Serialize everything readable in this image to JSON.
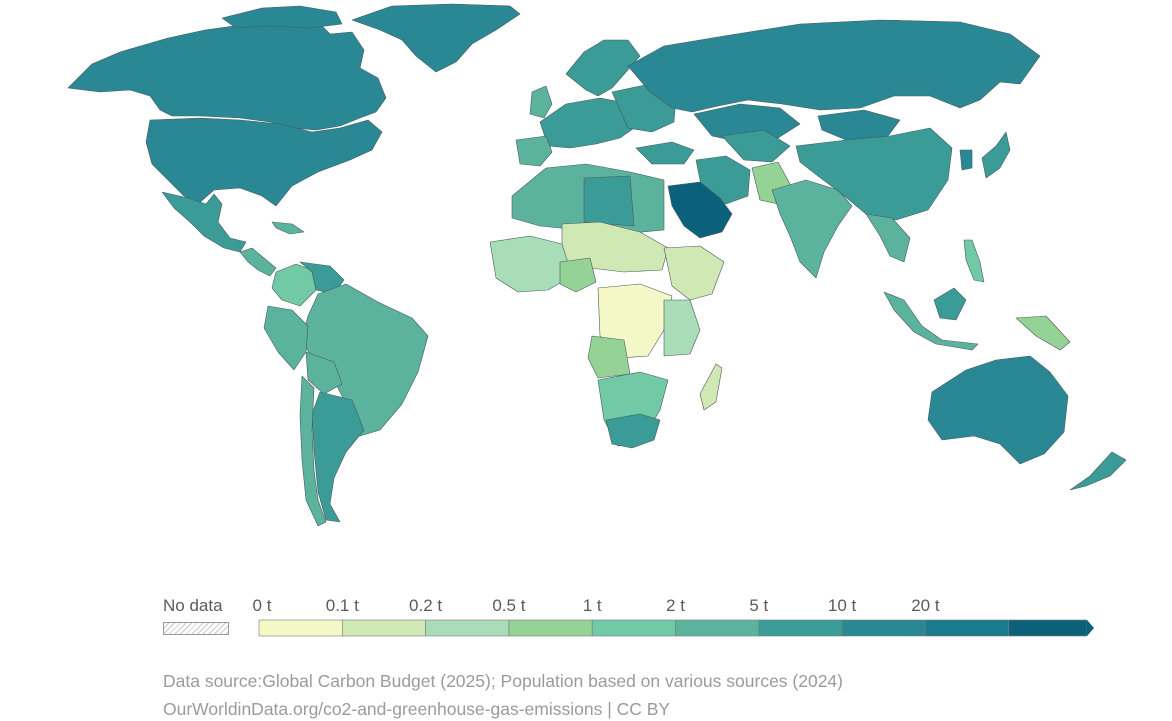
{
  "legend": {
    "no_data_label": "No data",
    "tick_labels": [
      "0 t",
      "0.1 t",
      "0.2 t",
      "0.5 t",
      "1 t",
      "2 t",
      "5 t",
      "10 t",
      "20 t"
    ],
    "bin_colors": [
      "#f4f7c6",
      "#cfe8b4",
      "#a8ddb7",
      "#94d295",
      "#72c9a6",
      "#5bb39d",
      "#3a9b97",
      "#2a8894",
      "#1a7a8e",
      "#0b617a"
    ],
    "no_data_color": "#dcdcdc"
  },
  "footer": {
    "source": "Data source:Global Carbon Budget (2025); Population based on various sources (2024)",
    "url_license": "OurWorldinData.org/co2-and-greenhouse-gas-emissions | CC BY"
  }
}
